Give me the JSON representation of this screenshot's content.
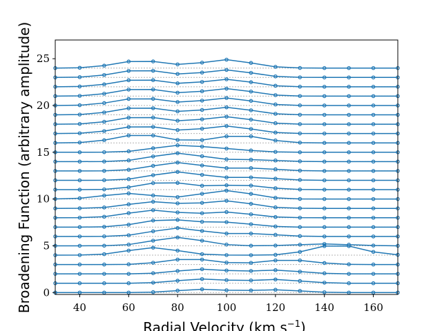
{
  "chart_data": {
    "type": "line",
    "ylabel": "Broadening Function (arbitrary amplitude)",
    "xlabel": [
      "Radial Velocity (km s",
      "−1",
      ")"
    ],
    "color": "#1f77b4",
    "xlim": [
      30,
      170
    ],
    "ylim": [
      -0.2,
      27
    ],
    "xticks": [
      40,
      60,
      80,
      100,
      120,
      140,
      160
    ],
    "yticks": [
      0,
      5,
      10,
      15,
      20,
      25
    ],
    "x": [
      30,
      40,
      50,
      60,
      70,
      80,
      90,
      100,
      110,
      120,
      130,
      140,
      150,
      160,
      170
    ],
    "series": [
      {
        "values": [
          0,
          0,
          0,
          0,
          0.05,
          0.21,
          0.35,
          0.25,
          0.23,
          0.3,
          0.18,
          0.04,
          0,
          0,
          0
        ]
      },
      {
        "values": [
          1,
          1,
          1,
          1,
          1.06,
          1.27,
          1.45,
          1.33,
          1.3,
          1.4,
          1.24,
          1.06,
          1,
          1,
          1
        ]
      },
      {
        "values": [
          2,
          2,
          2,
          2,
          2.07,
          2.31,
          2.5,
          2.36,
          2.31,
          2.4,
          2.24,
          2.06,
          2,
          2,
          2
        ]
      },
      {
        "values": [
          3,
          3,
          3,
          3.02,
          3.19,
          3.53,
          3.53,
          3.21,
          3.18,
          3.44,
          3.44,
          3.16,
          3.02,
          3,
          3
        ]
      },
      {
        "values": [
          4,
          4.01,
          4.11,
          4.49,
          4.8,
          4.49,
          4.11,
          4.01,
          4,
          4.04,
          4.35,
          4.97,
          4.97,
          4.35,
          4.04
        ]
      },
      {
        "values": [
          5,
          5,
          5.01,
          5.13,
          5.55,
          5.9,
          5.55,
          5.13,
          5.01,
          5.03,
          5.12,
          5.2,
          5.12,
          5.03,
          5
        ]
      },
      {
        "values": [
          6,
          6,
          6.01,
          6.13,
          6.55,
          6.9,
          6.59,
          6.31,
          6.31,
          6.18,
          6.04,
          6,
          6,
          6,
          6
        ]
      },
      {
        "values": [
          7,
          7,
          7.03,
          7.26,
          7.7,
          7.77,
          7.57,
          7.53,
          7.31,
          7.07,
          7,
          7,
          7,
          7,
          7
        ]
      },
      {
        "values": [
          8,
          8.01,
          8.11,
          8.49,
          8.81,
          8.57,
          8.48,
          8.61,
          8.37,
          8.08,
          8.01,
          8,
          8,
          8,
          8
        ]
      },
      {
        "values": [
          9,
          9.01,
          9.1,
          9.43,
          9.71,
          9.54,
          9.59,
          9.81,
          9.49,
          9.11,
          9.01,
          9,
          9,
          9,
          9
        ]
      },
      {
        "values": [
          10.01,
          10.08,
          10.37,
          10.6,
          10.38,
          10.21,
          10.56,
          10.9,
          10.55,
          10.13,
          10.01,
          10,
          10,
          10,
          10
        ]
      },
      {
        "values": [
          11,
          11,
          11.03,
          11.26,
          11.7,
          11.72,
          11.42,
          11.47,
          11.44,
          11.16,
          11.02,
          11,
          11,
          11,
          11
        ]
      },
      {
        "values": [
          12,
          12,
          12.01,
          12.13,
          12.55,
          12.9,
          12.59,
          12.31,
          12.31,
          12.18,
          12.04,
          12,
          12,
          12,
          12
        ]
      },
      {
        "values": [
          13,
          13,
          13.01,
          13.13,
          13.55,
          13.9,
          13.59,
          13.31,
          13.31,
          13.18,
          13.04,
          13,
          13,
          13,
          13
        ]
      },
      {
        "values": [
          14,
          14,
          14.01,
          14.13,
          14.55,
          14.9,
          14.58,
          14.25,
          14.21,
          14.12,
          14.03,
          14,
          14,
          14,
          14
        ]
      },
      {
        "values": [
          15,
          15,
          15.01,
          15.1,
          15.43,
          15.74,
          15.61,
          15.4,
          15.19,
          15.04,
          15,
          15,
          15,
          15,
          15
        ]
      },
      {
        "values": [
          16,
          16.04,
          16.29,
          16.79,
          16.79,
          16.32,
          16.3,
          16.7,
          16.7,
          16.26,
          16.03,
          16,
          16,
          16,
          16
        ]
      },
      {
        "values": [
          17,
          17.03,
          17.26,
          17.7,
          17.71,
          17.37,
          17.52,
          17.8,
          17.49,
          17.11,
          17.01,
          17,
          17,
          17,
          17
        ]
      },
      {
        "values": [
          18,
          18.03,
          18.26,
          18.7,
          18.71,
          18.37,
          18.52,
          18.8,
          18.49,
          18.11,
          18.01,
          18,
          18,
          18,
          18
        ]
      },
      {
        "values": [
          19,
          19.03,
          19.26,
          19.7,
          19.71,
          19.37,
          19.52,
          19.8,
          19.49,
          19.11,
          19.01,
          19,
          19,
          19,
          19
        ]
      },
      {
        "values": [
          20,
          20.03,
          20.26,
          20.7,
          20.71,
          20.37,
          20.52,
          20.8,
          20.49,
          20.11,
          20.01,
          20,
          20,
          20,
          20
        ]
      },
      {
        "values": [
          21,
          21.03,
          21.26,
          21.7,
          21.71,
          21.37,
          21.52,
          21.8,
          21.49,
          21.11,
          21.01,
          21,
          21,
          21,
          21
        ]
      },
      {
        "values": [
          22,
          22.03,
          22.26,
          22.7,
          22.71,
          22.37,
          22.52,
          22.8,
          22.49,
          22.11,
          22.01,
          22,
          22,
          22,
          22
        ]
      },
      {
        "values": [
          23,
          23.03,
          23.26,
          23.7,
          23.71,
          23.37,
          23.52,
          23.8,
          23.49,
          23.11,
          23.01,
          23,
          23,
          23,
          23
        ]
      },
      {
        "values": [
          24,
          24.03,
          24.26,
          24.7,
          24.71,
          24.39,
          24.58,
          24.9,
          24.55,
          24.13,
          24.01,
          24,
          24,
          24,
          24
        ]
      }
    ]
  }
}
